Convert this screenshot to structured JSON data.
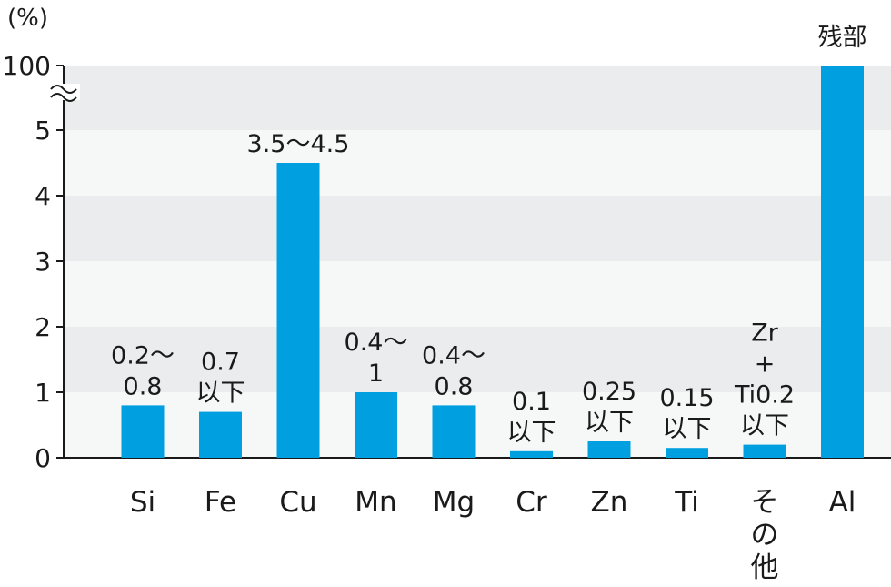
{
  "chart_data": {
    "type": "bar",
    "title": "",
    "xlabel": "",
    "ylabel": "",
    "unit_label": "(%)",
    "ylim": [
      0,
      6
    ],
    "axis_break": true,
    "grid": "alternating horizontal bands",
    "y_ticks": [
      "0",
      "1",
      "2",
      "3",
      "4",
      "5",
      "100"
    ],
    "bar_color": "#00a0e0",
    "categories": [
      "Si",
      "Fe",
      "Cu",
      "Mn",
      "Mg",
      "Cr",
      "Zn",
      "Ti",
      "その他",
      "Al"
    ],
    "category_lines": [
      [
        "Si"
      ],
      [
        "Fe"
      ],
      [
        "Cu"
      ],
      [
        "Mn"
      ],
      [
        "Mg"
      ],
      [
        "Cr"
      ],
      [
        "Zn"
      ],
      [
        "Ti"
      ],
      [
        "そ",
        "の",
        "他"
      ],
      [
        "Al"
      ]
    ],
    "values": [
      0.8,
      0.7,
      4.5,
      1.0,
      0.8,
      0.1,
      0.25,
      0.15,
      0.2,
      100
    ],
    "data_labels": [
      [
        "0.2〜",
        "0.8"
      ],
      [
        "0.7",
        "以下"
      ],
      [
        "3.5〜4.5"
      ],
      [
        "0.4〜",
        "1"
      ],
      [
        "0.4〜",
        "0.8"
      ],
      [
        "0.1",
        "以下"
      ],
      [
        "0.25",
        "以下"
      ],
      [
        "0.15",
        "以下"
      ],
      [
        "Zr",
        "+",
        "Ti0.2",
        "以下"
      ],
      [
        "残部"
      ]
    ]
  }
}
